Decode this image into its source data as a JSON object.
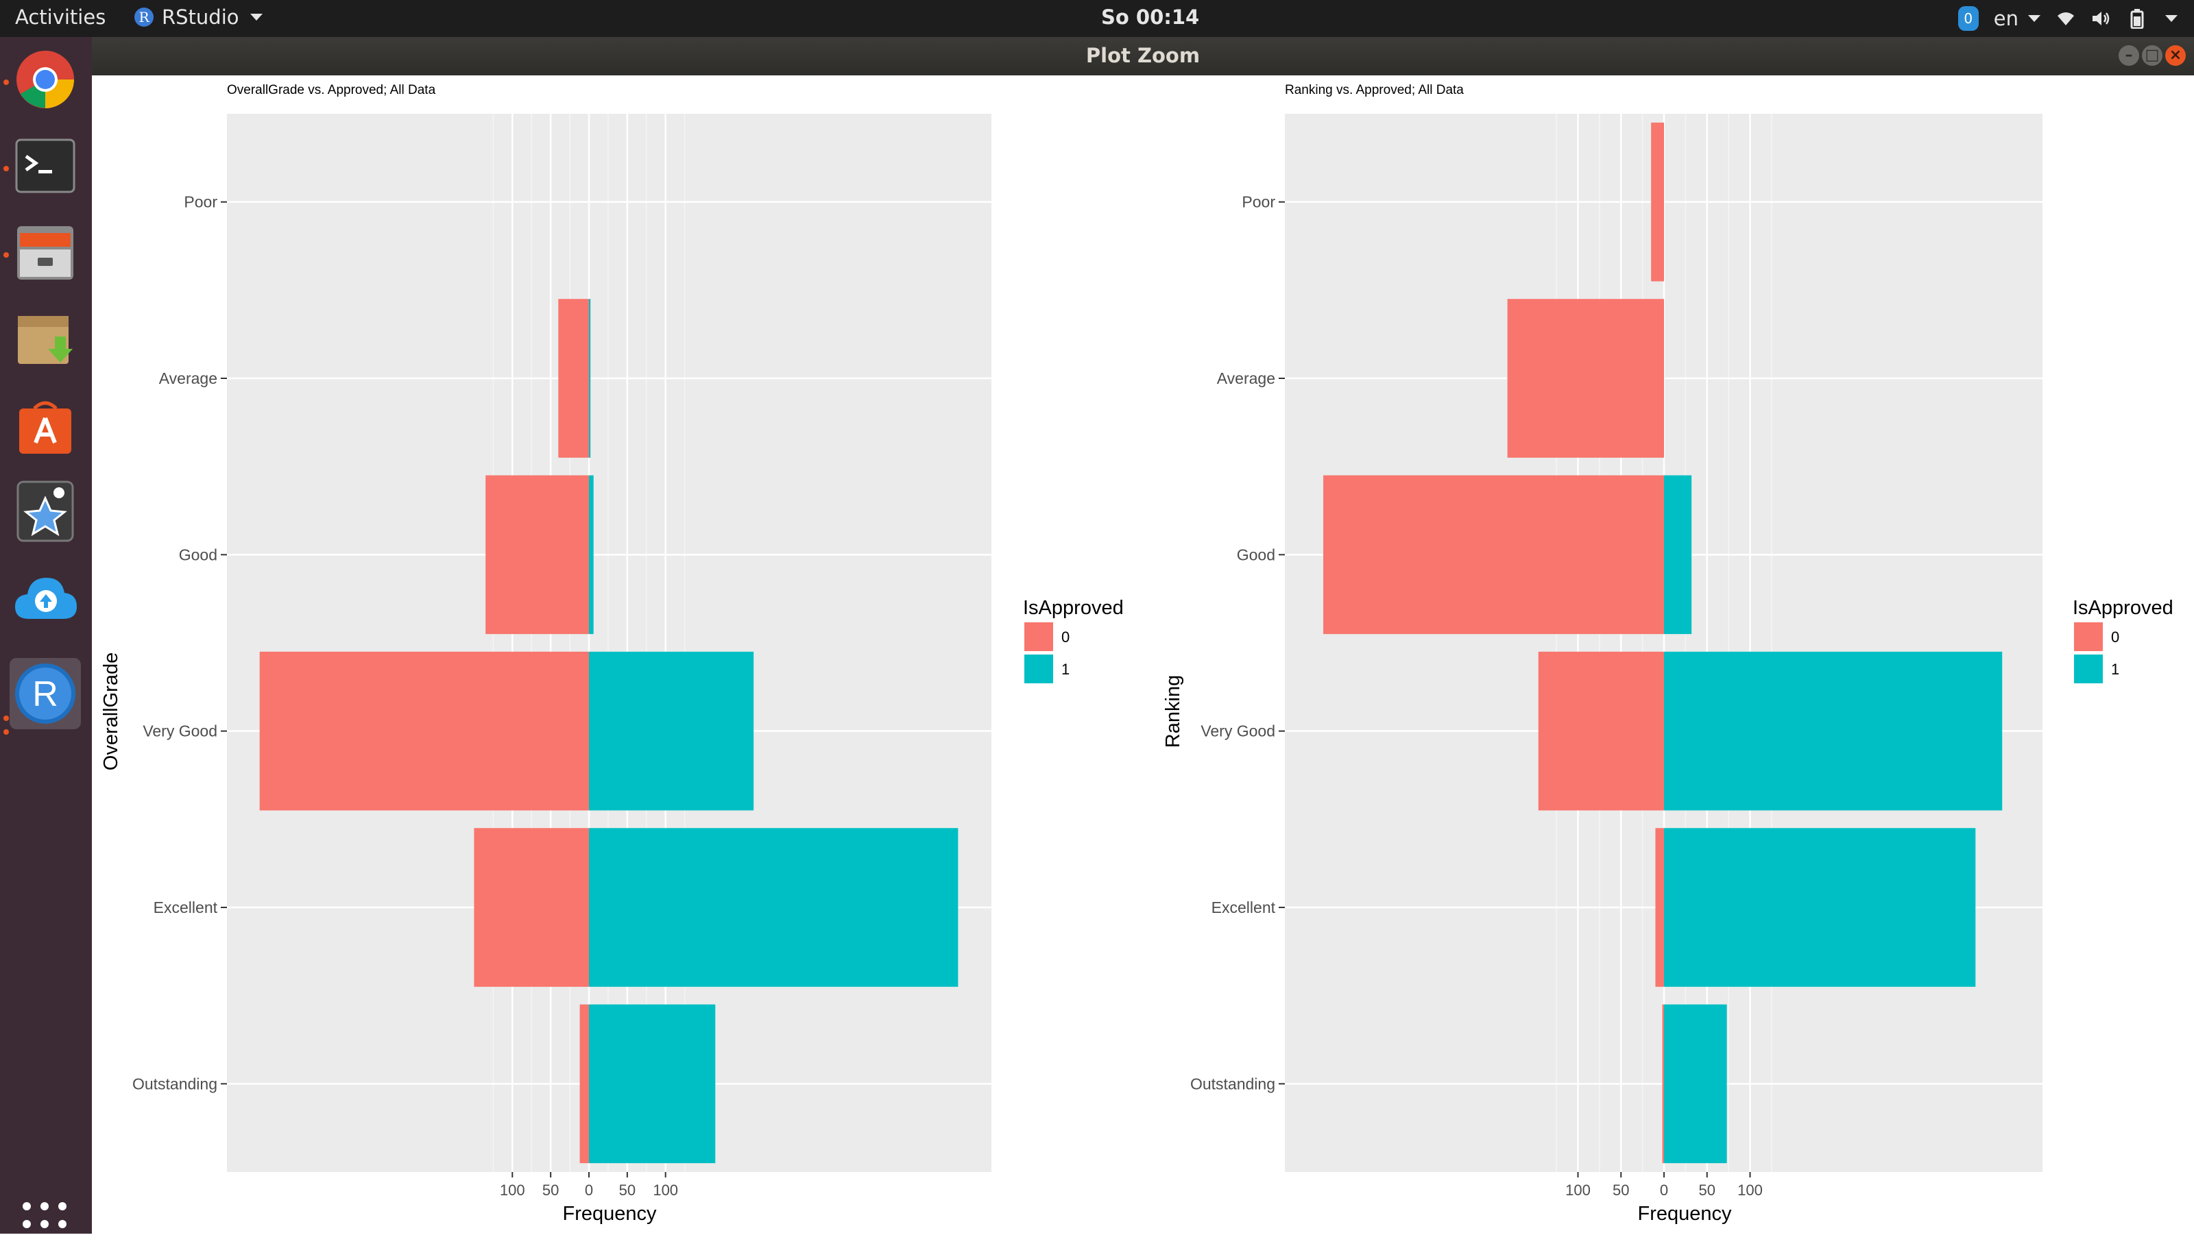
{
  "topbar": {
    "activities": "Activities",
    "app_name": "RStudio",
    "app_icon_letter": "R",
    "clock": "So 00:14",
    "notification_count": "0",
    "language": "en"
  },
  "dock": {
    "items": [
      "chrome-icon",
      "terminal-icon",
      "files-icon",
      "archive-manager-icon",
      "software-center-icon",
      "favorites-icon",
      "cloud-upload-icon",
      "rstudio-icon"
    ]
  },
  "window": {
    "title": "Plot Zoom",
    "minimize": "–",
    "maximize": "□",
    "close": "×"
  },
  "colors": {
    "approved_0": "#F8766D",
    "approved_1": "#00BFC4",
    "panel_bg": "#EBEBEB"
  },
  "chart_data": [
    {
      "type": "bar",
      "title": "OverallGrade vs. Approved; All Data",
      "xlabel": "Frequency",
      "ylabel": "OverallGrade",
      "categories": [
        "Poor",
        "Average",
        "Good",
        "Very Good",
        "Excellent",
        "Outstanding"
      ],
      "series": [
        {
          "name": "0",
          "values": [
            0,
            40,
            135,
            430,
            150,
            12
          ]
        },
        {
          "name": "1",
          "values": [
            0,
            2,
            6,
            215,
            482,
            165
          ]
        }
      ],
      "xticks": [
        "100",
        "50",
        "0",
        "50",
        "100"
      ],
      "legend_title": "IsApproved",
      "legend_position": "right"
    },
    {
      "type": "bar",
      "title": "Ranking vs. Approved; All Data",
      "xlabel": "Frequency",
      "ylabel": "Ranking",
      "categories": [
        "Poor",
        "Average",
        "Good",
        "Very Good",
        "Excellent",
        "Outstanding"
      ],
      "series": [
        {
          "name": "0",
          "values": [
            15,
            182,
            396,
            146,
            10,
            2
          ]
        },
        {
          "name": "1",
          "values": [
            0,
            0,
            32,
            393,
            362,
            73
          ]
        }
      ],
      "xticks": [
        "100",
        "50",
        "0",
        "50",
        "100"
      ],
      "legend_title": "IsApproved",
      "legend_position": "right"
    }
  ]
}
